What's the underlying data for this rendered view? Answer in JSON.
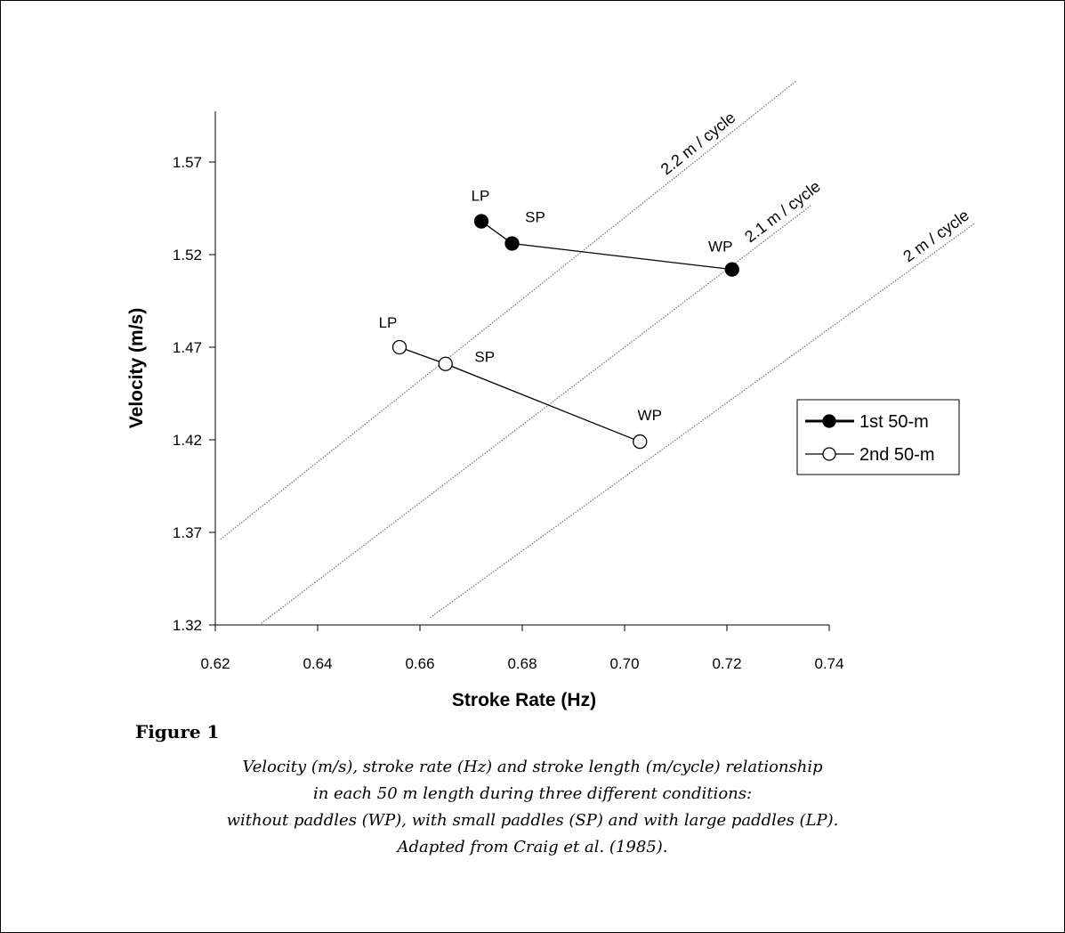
{
  "figure": {
    "label": "Figure 1",
    "caption_lines": [
      "Velocity (m/s), stroke rate (Hz) and stroke length (m/cycle) relationship",
      "in each 50 m length during three different conditions:",
      "without paddles (WP), with small paddles (SP) and with large paddles (LP).",
      "Adapted from Craig et al. (1985)."
    ]
  },
  "chart_data": {
    "type": "line",
    "title": "",
    "xlabel": "Stroke Rate (Hz)",
    "ylabel": "Velocity (m/s)",
    "xlim": [
      0.62,
      0.74
    ],
    "ylim": [
      1.32,
      1.6
    ],
    "xticks": [
      "0.62",
      "0.64",
      "0.66",
      "0.68",
      "0.70",
      "0.72",
      "0.74"
    ],
    "yticks": [
      "1.32",
      "1.37",
      "1.42",
      "1.47",
      "1.52",
      "1.57"
    ],
    "grid": false,
    "legend": "right",
    "series": [
      {
        "name": "1st 50-m",
        "marker": "filled-circle",
        "points": [
          {
            "label": "LP",
            "x": 0.672,
            "y": 1.538
          },
          {
            "label": "SP",
            "x": 0.678,
            "y": 1.526
          },
          {
            "label": "WP",
            "x": 0.721,
            "y": 1.512
          }
        ]
      },
      {
        "name": "2nd 50-m",
        "marker": "open-circle",
        "points": [
          {
            "label": "LP",
            "x": 0.656,
            "y": 1.47
          },
          {
            "label": "SP",
            "x": 0.665,
            "y": 1.461
          },
          {
            "label": "WP",
            "x": 0.703,
            "y": 1.419
          }
        ]
      }
    ],
    "reference_lines": [
      {
        "label": "2.2 m / cycle",
        "slope": 2.2
      },
      {
        "label": "2.1 m / cycle",
        "slope": 2.1
      },
      {
        "label": "2 m / cycle",
        "slope": 2.0
      }
    ]
  }
}
